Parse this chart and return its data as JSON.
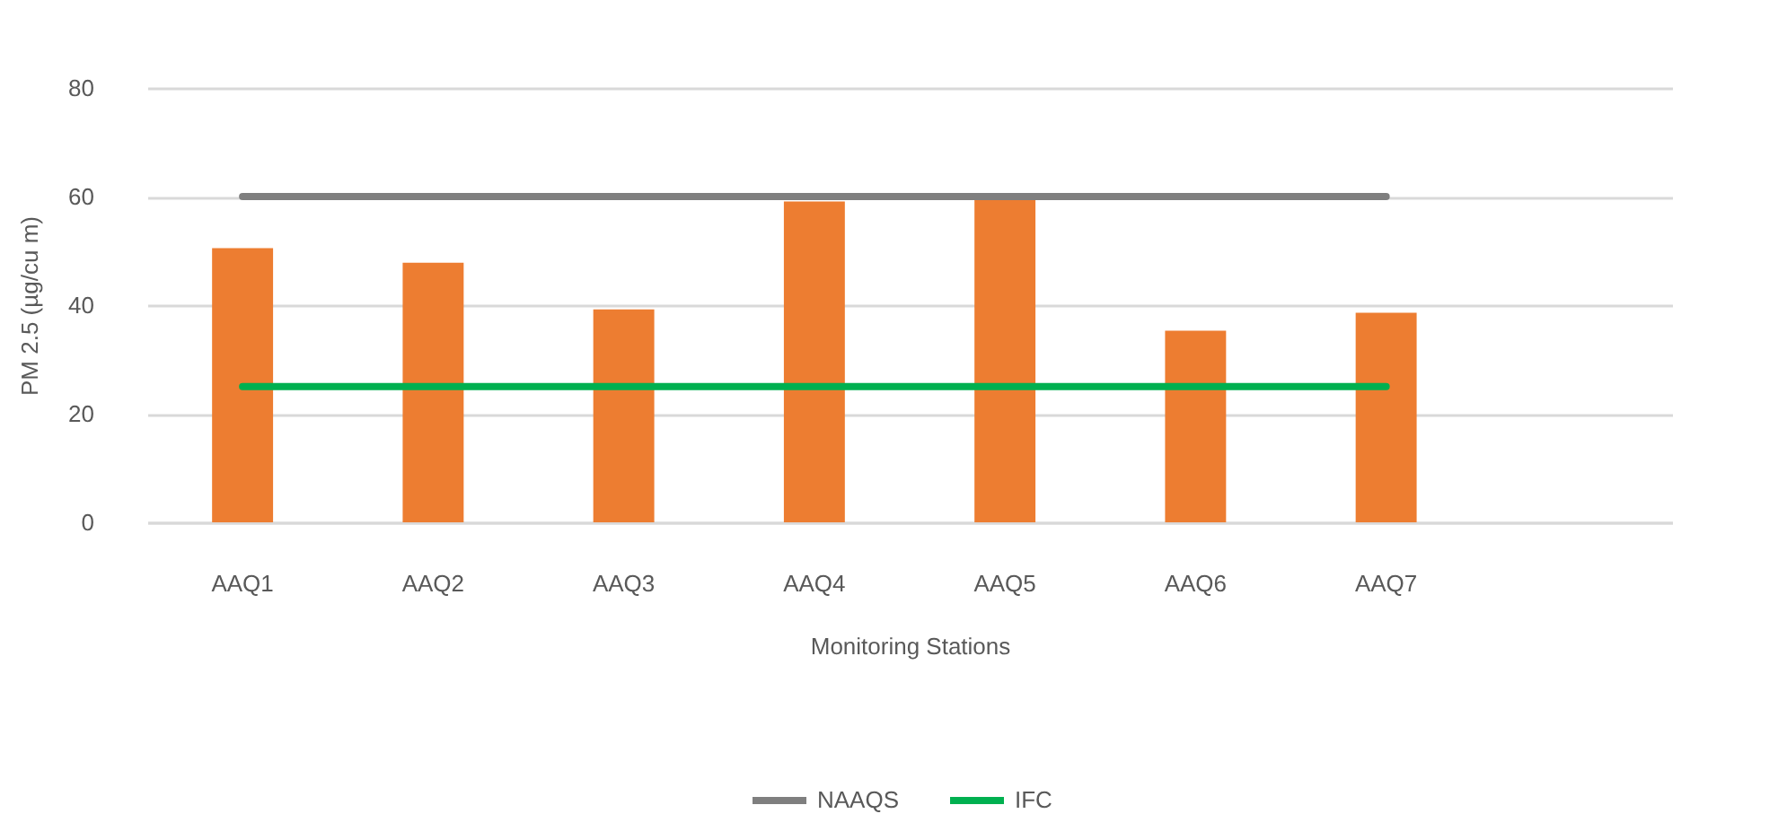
{
  "chart_data": {
    "type": "bar",
    "categories": [
      "AAQ1",
      "AAQ2",
      "AAQ3",
      "AAQ4",
      "AAQ5",
      "AAQ6",
      "AAQ7",
      null
    ],
    "series": [
      {
        "color": "#ed7d31",
        "values": [
          50.5,
          47.8,
          39.2,
          59.1,
          59.7,
          35.3,
          38.6,
          null
        ]
      },
      {
        "name": "NAAQS",
        "type": "line",
        "color": "#7f7f7f",
        "values": [
          60,
          60,
          60,
          60,
          60,
          60,
          60,
          null
        ]
      },
      {
        "name": "IFC",
        "type": "line",
        "color": "#00b050",
        "values": [
          25,
          25,
          25,
          25,
          25,
          25,
          25,
          null
        ]
      }
    ],
    "xlabel": "Monitoring Stations",
    "ylabel": "PM 2.5 (µg/cu m)",
    "ylim": [
      0,
      80
    ],
    "yticks": [
      0,
      20,
      40,
      60,
      80
    ],
    "grid": "y",
    "legend": "bottom"
  }
}
